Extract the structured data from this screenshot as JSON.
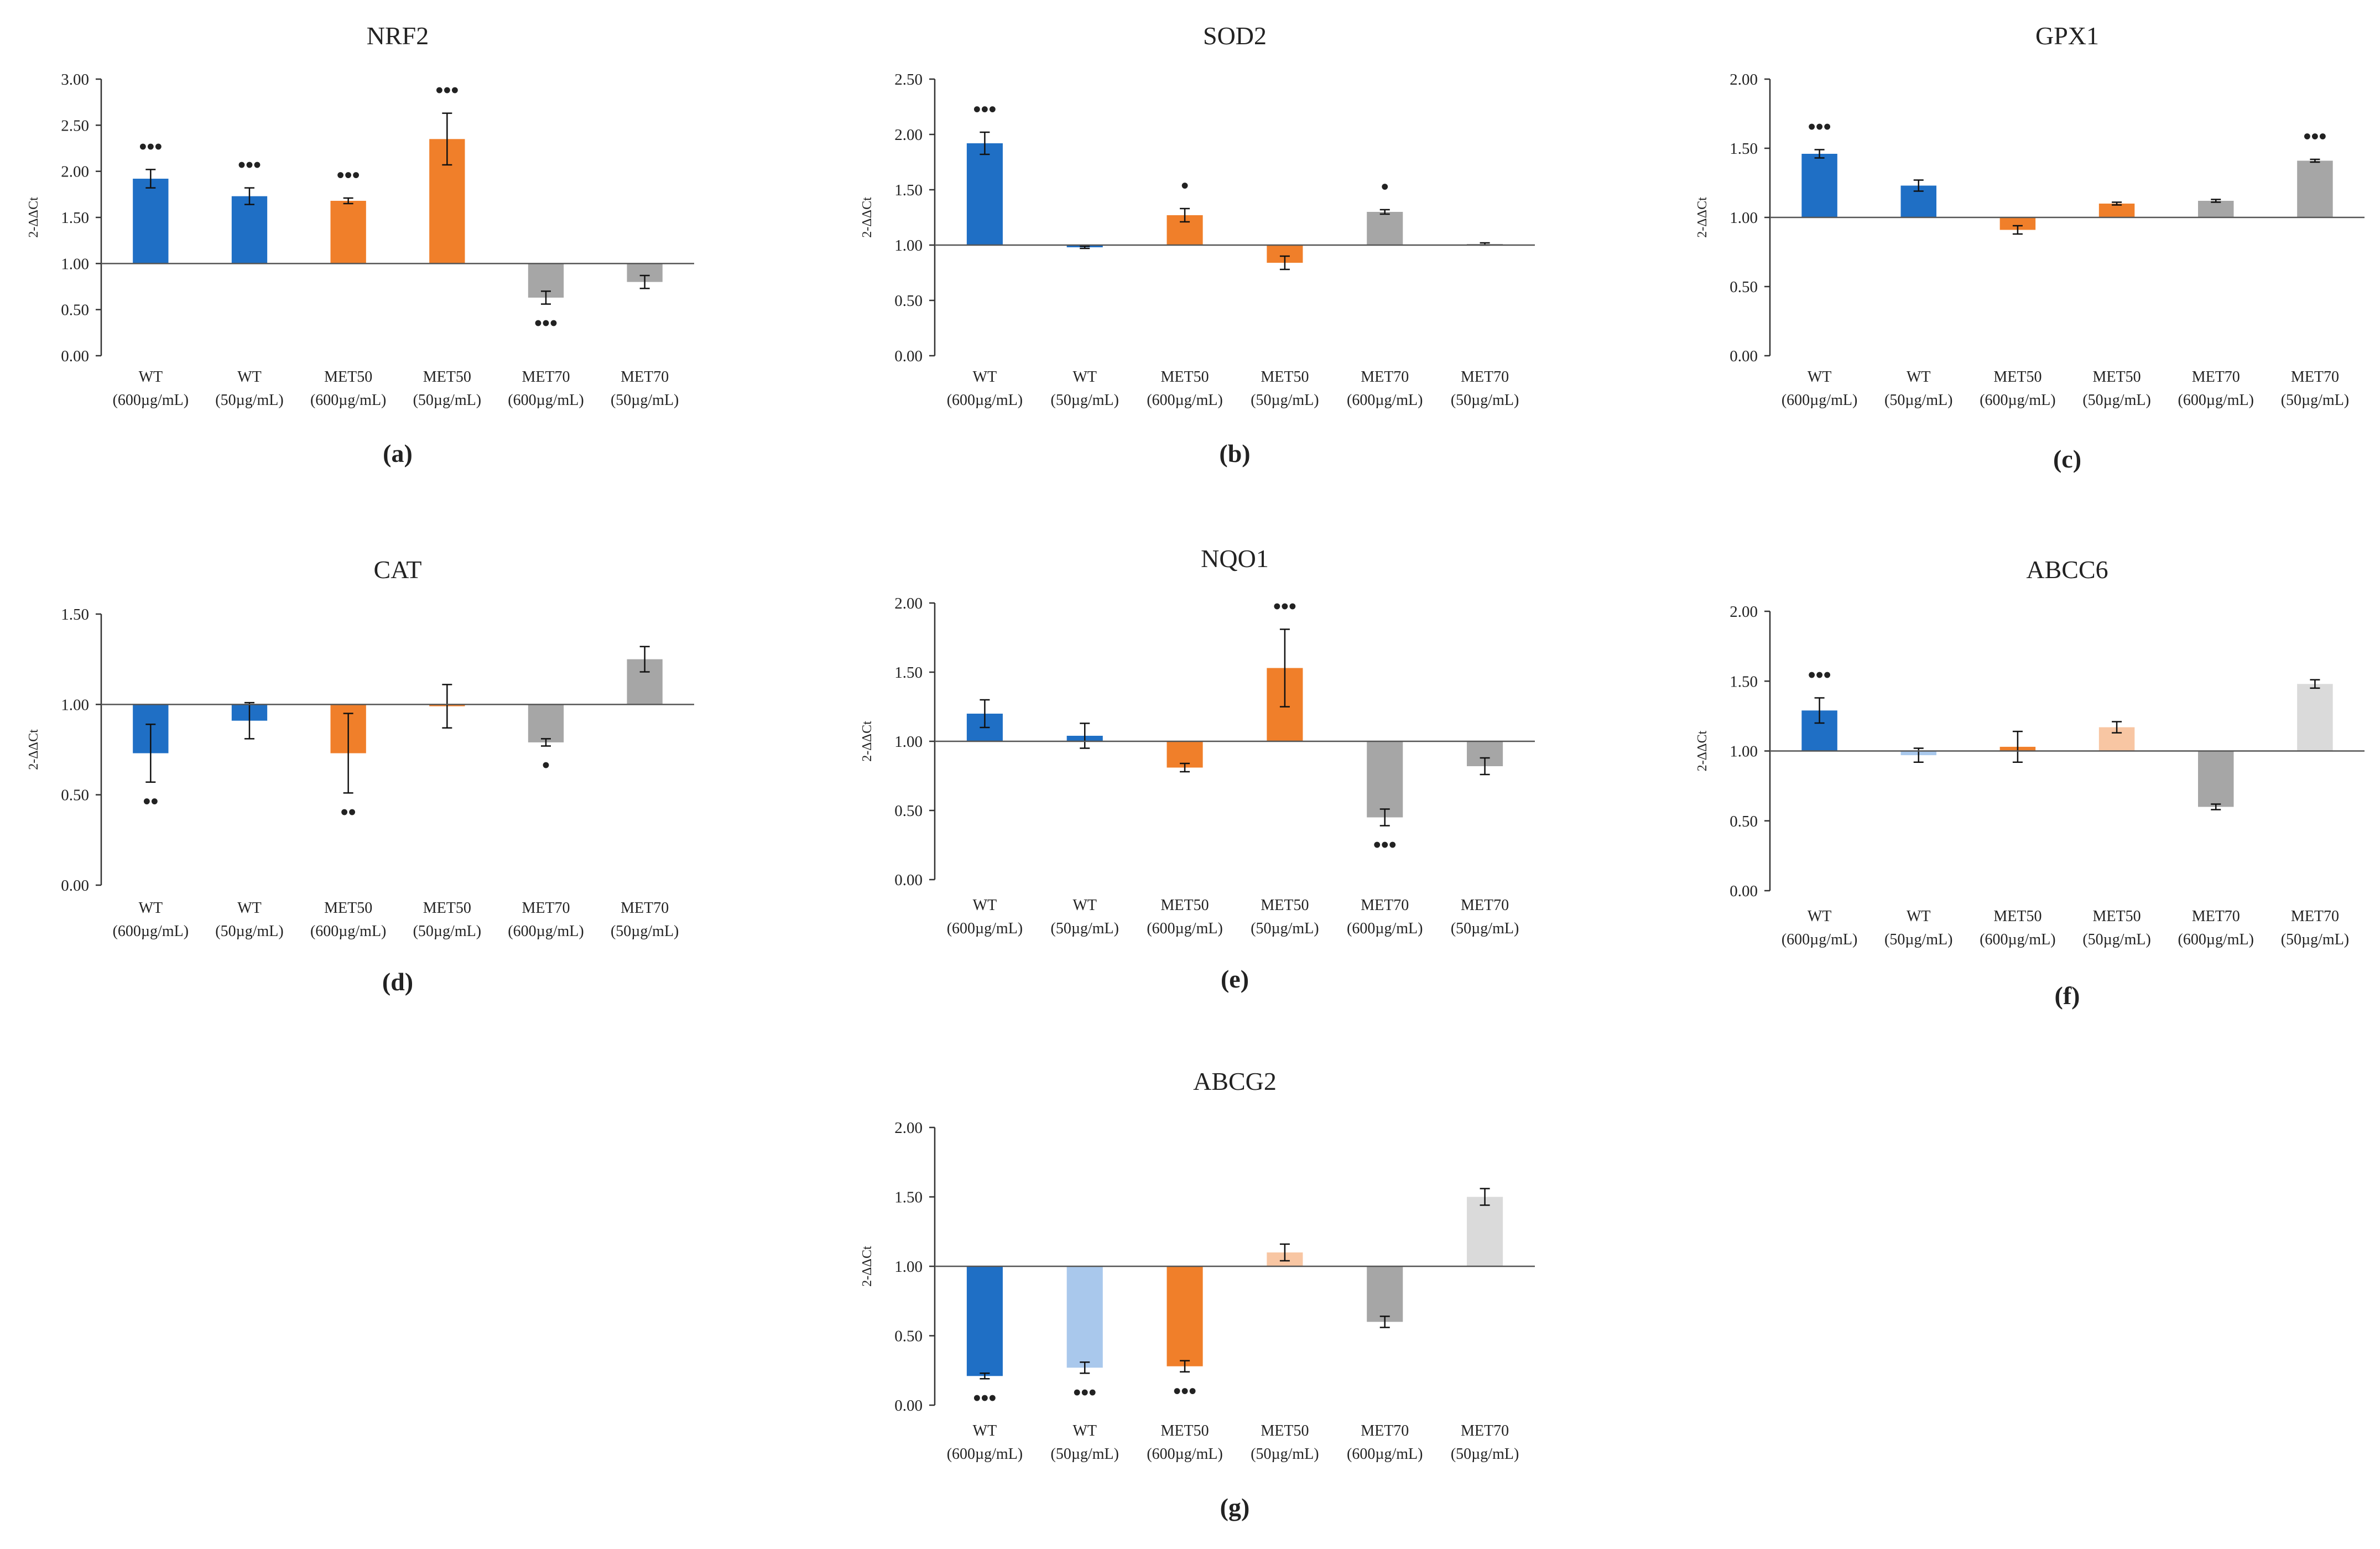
{
  "figure": {
    "categories": [
      {
        "line1": "WT",
        "line2": "(600µg/mL)"
      },
      {
        "line1": "WT",
        "line2": "(50µg/mL)"
      },
      {
        "line1": "MET50",
        "line2": "(600µg/mL)"
      },
      {
        "line1": "MET50",
        "line2": "(50µg/mL)"
      },
      {
        "line1": "MET70",
        "line2": "(600µg/mL)"
      },
      {
        "line1": "MET70",
        "line2": "(50µg/mL)"
      }
    ],
    "colors": {
      "wt_dark": "#1f6fc5",
      "wt_light": "#a9c8ec",
      "met50_dark": "#f07f2a",
      "met50_light": "#f8c6a3",
      "met70_dark": "#a6a6a6",
      "met70_light": "#dadada",
      "axis": "#333333",
      "baseline": "#555555"
    }
  },
  "chart_data": [
    {
      "type": "bar",
      "label": "(a)",
      "title": "NRF2",
      "ylabel": "2-ΔΔCt",
      "baseline": 1.0,
      "ylim": [
        0,
        3
      ],
      "yticks": [
        "0.00",
        "0.50",
        "1.00",
        "1.50",
        "2.00",
        "2.50",
        "3.00"
      ],
      "categories": [
        "WT (600µg/mL)",
        "WT (50µg/mL)",
        "MET50 (600µg/mL)",
        "MET50 (50µg/mL)",
        "MET70 (600µg/mL)",
        "MET70 (50µg/mL)"
      ],
      "values": [
        1.92,
        1.73,
        1.68,
        2.35,
        0.63,
        0.8
      ],
      "errors": [
        0.1,
        0.09,
        0.03,
        0.28,
        0.07,
        0.07
      ],
      "significance": [
        "•••",
        "•••",
        "•••",
        "•••",
        "•••",
        ""
      ],
      "bar_colors": [
        "#1f6fc5",
        "#1f6fc5",
        "#f07f2a",
        "#f07f2a",
        "#a6a6a6",
        "#a6a6a6"
      ]
    },
    {
      "type": "bar",
      "label": "(b)",
      "title": "SOD2",
      "ylabel": "2-ΔΔCt",
      "baseline": 1.0,
      "ylim": [
        0,
        2.5
      ],
      "yticks": [
        "0.00",
        "0.50",
        "1.00",
        "1.50",
        "2.00",
        "2.50"
      ],
      "categories": [
        "WT (600µg/mL)",
        "WT (50µg/mL)",
        "MET50 (600µg/mL)",
        "MET50 (50µg/mL)",
        "MET70 (600µg/mL)",
        "MET70 (50µg/mL)"
      ],
      "values": [
        1.92,
        0.98,
        1.27,
        0.84,
        1.3,
        1.01
      ],
      "errors": [
        0.1,
        0.01,
        0.06,
        0.06,
        0.02,
        0.01
      ],
      "significance": [
        "•••",
        "",
        "•",
        "",
        "•",
        ""
      ],
      "bar_colors": [
        "#1f6fc5",
        "#1f6fc5",
        "#f07f2a",
        "#f07f2a",
        "#a6a6a6",
        "#a6a6a6"
      ]
    },
    {
      "type": "bar",
      "label": "(c)",
      "title": "GPX1",
      "ylabel": "2-ΔΔCt",
      "baseline": 1.0,
      "ylim": [
        0,
        2
      ],
      "yticks": [
        "0.00",
        "0.50",
        "1.00",
        "1.50",
        "2.00"
      ],
      "categories": [
        "WT (600µg/mL)",
        "WT (50µg/mL)",
        "MET50 (600µg/mL)",
        "MET50 (50µg/mL)",
        "MET70 (600µg/mL)",
        "MET70 (50µg/mL)"
      ],
      "values": [
        1.46,
        1.23,
        0.91,
        1.1,
        1.12,
        1.41
      ],
      "errors": [
        0.03,
        0.04,
        0.03,
        0.01,
        0.01,
        0.01
      ],
      "significance": [
        "•••",
        "",
        "",
        "",
        "",
        "•••"
      ],
      "bar_colors": [
        "#1f6fc5",
        "#1f6fc5",
        "#f07f2a",
        "#f07f2a",
        "#a6a6a6",
        "#a6a6a6"
      ]
    },
    {
      "type": "bar",
      "label": "(d)",
      "title": "CAT",
      "ylabel": "2-ΔΔCt",
      "baseline": 1.0,
      "ylim": [
        0,
        1.5
      ],
      "yticks": [
        "0.00",
        "0.50",
        "1.00",
        "1.50"
      ],
      "categories": [
        "WT (600µg/mL)",
        "WT (50µg/mL)",
        "MET50 (600µg/mL)",
        "MET50 (50µg/mL)",
        "MET70 (600µg/mL)",
        "MET70 (50µg/mL)"
      ],
      "values": [
        0.73,
        0.91,
        0.73,
        0.99,
        0.79,
        1.25
      ],
      "errors": [
        0.16,
        0.1,
        0.22,
        0.12,
        0.02,
        0.07
      ],
      "significance": [
        "••",
        "",
        "••",
        "",
        "•",
        ""
      ],
      "bar_colors": [
        "#1f6fc5",
        "#1f6fc5",
        "#f07f2a",
        "#f07f2a",
        "#a6a6a6",
        "#a6a6a6"
      ]
    },
    {
      "type": "bar",
      "label": "(e)",
      "title": "NQO1",
      "ylabel": "2-ΔΔCt",
      "baseline": 1.0,
      "ylim": [
        0,
        2
      ],
      "yticks": [
        "0.00",
        "0.50",
        "1.00",
        "1.50",
        "2.00"
      ],
      "categories": [
        "WT (600µg/mL)",
        "WT (50µg/mL)",
        "MET50 (600µg/mL)",
        "MET50 (50µg/mL)",
        "MET70 (600µg/mL)",
        "MET70 (50µg/mL)"
      ],
      "values": [
        1.2,
        1.04,
        0.81,
        1.53,
        0.45,
        0.82
      ],
      "errors": [
        0.1,
        0.09,
        0.03,
        0.28,
        0.06,
        0.06
      ],
      "significance": [
        "",
        "",
        "",
        "•••",
        "•••",
        ""
      ],
      "bar_colors": [
        "#1f6fc5",
        "#1f6fc5",
        "#f07f2a",
        "#f07f2a",
        "#a6a6a6",
        "#a6a6a6"
      ]
    },
    {
      "type": "bar",
      "label": "(f)",
      "title": "ABCC6",
      "ylabel": "2-ΔΔCt",
      "baseline": 1.0,
      "ylim": [
        0,
        2
      ],
      "yticks": [
        "0.00",
        "0.50",
        "1.00",
        "1.50",
        "2.00"
      ],
      "categories": [
        "WT (600µg/mL)",
        "WT (50µg/mL)",
        "MET50 (600µg/mL)",
        "MET50 (50µg/mL)",
        "MET70 (600µg/mL)",
        "MET70 (50µg/mL)"
      ],
      "values": [
        1.29,
        0.97,
        1.03,
        1.17,
        0.6,
        1.48
      ],
      "errors": [
        0.09,
        0.05,
        0.11,
        0.04,
        0.02,
        0.03
      ],
      "significance": [
        "•••",
        "",
        "",
        "",
        "",
        ""
      ],
      "bar_colors": [
        "#1f6fc5",
        "#a9c8ec",
        "#f07f2a",
        "#f8c6a3",
        "#a6a6a6",
        "#dadada"
      ]
    },
    {
      "type": "bar",
      "label": "(g)",
      "title": "ABCG2",
      "ylabel": "2-ΔΔCt",
      "baseline": 1.0,
      "ylim": [
        0,
        2
      ],
      "yticks": [
        "0.00",
        "0.50",
        "1.00",
        "1.50",
        "2.00"
      ],
      "categories": [
        "WT (600µg/mL)",
        "WT (50µg/mL)",
        "MET50 (600µg/mL)",
        "MET50 (50µg/mL)",
        "MET70 (600µg/mL)",
        "MET70 (50µg/mL)"
      ],
      "values": [
        0.21,
        0.27,
        0.28,
        1.1,
        0.6,
        1.5
      ],
      "errors": [
        0.02,
        0.04,
        0.04,
        0.06,
        0.04,
        0.06
      ],
      "significance": [
        "•••",
        "•••",
        "•••",
        "",
        "",
        ""
      ],
      "bar_colors": [
        "#1f6fc5",
        "#a9c8ec",
        "#f07f2a",
        "#f8c6a3",
        "#a6a6a6",
        "#dadada"
      ]
    }
  ]
}
